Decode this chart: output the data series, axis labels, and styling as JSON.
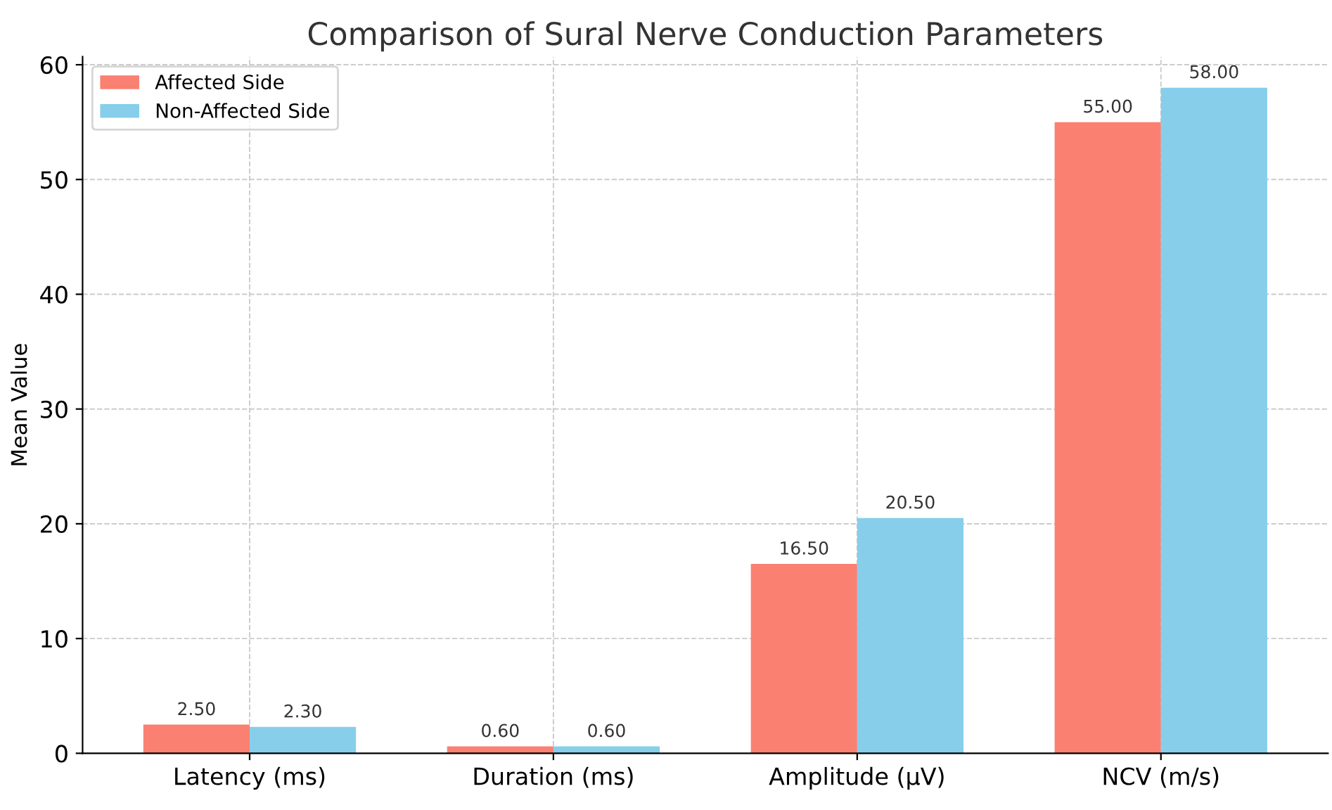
{
  "chart_data": {
    "type": "bar",
    "title": "Comparison of Sural Nerve Conduction Parameters",
    "ylabel": "Mean Value",
    "categories": [
      "Latency (ms)",
      "Duration (ms)",
      "Amplitude (μV)",
      "NCV (m/s)"
    ],
    "series": [
      {
        "name": "Affected Side",
        "color": "#fa8072",
        "values": [
          2.5,
          0.6,
          16.5,
          55.0
        ],
        "value_labels": [
          "2.50",
          "0.60",
          "16.50",
          "55.00"
        ]
      },
      {
        "name": "Non-Affected Side",
        "color": "#87ceeb",
        "values": [
          2.3,
          0.6,
          20.5,
          58.0
        ],
        "value_labels": [
          "2.30",
          "0.60",
          "20.50",
          "58.00"
        ]
      }
    ],
    "ylim": [
      0,
      60.7
    ],
    "yticks": [
      0,
      10,
      20,
      30,
      40,
      50,
      60
    ],
    "grid": true,
    "legend": "top left"
  }
}
